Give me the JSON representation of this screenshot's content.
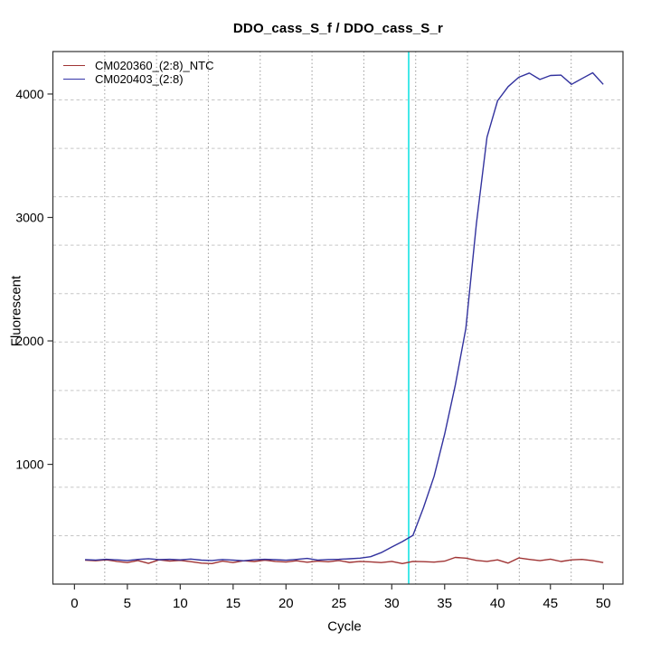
{
  "title": "DDO_cass_S_f / DDO_cass_S_r",
  "axis": {
    "xlabel": "Cycle",
    "ylabel": "Fluorescent"
  },
  "legend": {
    "position": "top-left",
    "entries": [
      {
        "label": "CM020360_(2:8)_NTC",
        "color": "#a03434"
      },
      {
        "label": "CM020403_(2:8)",
        "color": "#3434a8"
      }
    ]
  },
  "colors": {
    "ntc_line": "#a03434",
    "sample_line": "#32329e",
    "threshold_line": "#44e8e8",
    "grid_horizontal": "#c6c6c6",
    "grid_vertical": "#8f8f8f",
    "box": "#333333",
    "text": "#000000",
    "background": "#ffffff"
  },
  "chart_data": {
    "type": "line",
    "title": "DDO_cass_S_f / DDO_cass_S_r",
    "xlabel": "Cycle",
    "ylabel": "Fluorescent",
    "xlim": [
      -2.04,
      51.86
    ],
    "ylim": [
      30,
      4344
    ],
    "x_ticks": [
      0,
      5,
      10,
      15,
      20,
      25,
      30,
      35,
      40,
      45,
      50
    ],
    "y_ticks": [
      1000,
      2000,
      3000,
      4000
    ],
    "grid": {
      "on": true,
      "nx": 11,
      "ny": 11,
      "h_style": "dashed",
      "v_style": "dotted"
    },
    "threshold_cycle": 31.6,
    "x": [
      1,
      2,
      3,
      4,
      5,
      6,
      7,
      8,
      9,
      10,
      11,
      12,
      13,
      14,
      15,
      16,
      17,
      18,
      19,
      20,
      21,
      22,
      23,
      24,
      25,
      26,
      27,
      28,
      29,
      30,
      31,
      32,
      33,
      34,
      35,
      36,
      37,
      38,
      39,
      40,
      41,
      42,
      43,
      44,
      45,
      46,
      47,
      48,
      49,
      50
    ],
    "series": [
      {
        "name": "CM020360_(2:8)_NTC",
        "color": "#a03434",
        "values": [
          224,
          219,
          226,
          214,
          204,
          221,
          198,
          226,
          217,
          222,
          212,
          200,
          196,
          216,
          204,
          219,
          213,
          224,
          214,
          209,
          219,
          207,
          216,
          211,
          221,
          206,
          214,
          210,
          204,
          214,
          196,
          214,
          212,
          208,
          216,
          246,
          240,
          222,
          214,
          226,
          200,
          242,
          230,
          220,
          232,
          213,
          226,
          230,
          220,
          204
        ]
      },
      {
        "name": "CM020403_(2:8)",
        "color": "#32329e",
        "values": [
          228,
          225,
          231,
          226,
          221,
          230,
          236,
          228,
          231,
          226,
          233,
          224,
          221,
          229,
          224,
          219,
          227,
          231,
          228,
          223,
          230,
          238,
          225,
          229,
          231,
          235,
          240,
          252,
          285,
          330,
          374,
          425,
          650,
          903,
          1245,
          1640,
          2100,
          2950,
          3650,
          3945,
          4060,
          4135,
          4170,
          4118,
          4150,
          4153,
          4078,
          4126,
          4172,
          4078
        ]
      }
    ]
  }
}
